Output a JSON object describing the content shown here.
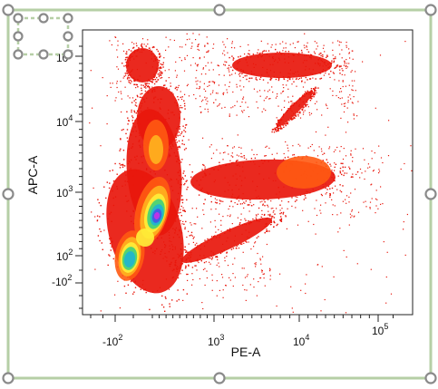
{
  "chart_data": {
    "type": "scatter",
    "subtype": "density-dot-plot",
    "xlabel": "PE-A",
    "ylabel": "APC-A",
    "x_scale": "biexponential",
    "y_scale": "biexponential",
    "x_tick_labels": [
      {
        "text": "-10",
        "sup": "2",
        "at": -100
      },
      {
        "text": "10",
        "sup": "3",
        "at": 1000
      },
      {
        "text": "10",
        "sup": "4",
        "at": 10000
      },
      {
        "text": "10",
        "sup": "5",
        "at": 100000
      }
    ],
    "y_tick_labels": [
      {
        "text": "-10",
        "sup": "2",
        "at": -100
      },
      {
        "text": "10",
        "sup": "2",
        "at": 100
      },
      {
        "text": "10",
        "sup": "3",
        "at": 1000
      },
      {
        "text": "10",
        "sup": "4",
        "at": 10000
      },
      {
        "text": "10",
        "sup": "5",
        "at": 100000
      }
    ],
    "grid": false,
    "colormap": [
      "#e8170c",
      "#ff5a12",
      "#ffb41f",
      "#fff03a",
      "#3fd07a",
      "#1fb4d2",
      "#4456e6",
      "#cc2ee6"
    ],
    "populations": [
      {
        "x": 380,
        "y": 1500,
        "density": 1.0
      },
      {
        "x": 150,
        "y": 250,
        "density": 0.85
      },
      {
        "x": 200,
        "y": 5000,
        "density": 0.55
      },
      {
        "x": 20,
        "y": 75000,
        "density": 0.5
      },
      {
        "x": 10000,
        "y": 80000,
        "density": 0.45
      },
      {
        "x": 14000,
        "y": 1800,
        "density": 0.5
      },
      {
        "x": 2000,
        "y": 1900,
        "density": 0.3
      }
    ]
  },
  "gate": {
    "color": "#b6cfa6",
    "handle_color": "#8a8a8a"
  }
}
